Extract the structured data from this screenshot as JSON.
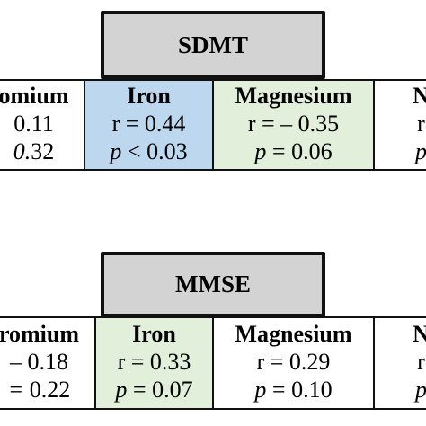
{
  "panels": [
    {
      "title": "SDMT",
      "cells": [
        {
          "header": "omium",
          "r": "0.11",
          "p": "0.32",
          "highlight": "none"
        },
        {
          "header": "Iron",
          "r": "r = 0.44",
          "p": "p < 0.03",
          "highlight": "blue"
        },
        {
          "header": "Magnesium",
          "r": "r = – 0.35",
          "p": "p = 0.06",
          "highlight": "green"
        },
        {
          "header": "N",
          "r": "r",
          "p": "p",
          "highlight": "none"
        }
      ]
    },
    {
      "title": "MMSE",
      "cells": [
        {
          "header": "romium",
          "r": "– 0.18",
          "p": "= 0.22",
          "highlight": "none"
        },
        {
          "header": "Iron",
          "r": "r = 0.33",
          "p": "p = 0.07",
          "highlight": "green"
        },
        {
          "header": "Magnesium",
          "r": "r = 0.29",
          "p": "p = 0.10",
          "highlight": "none"
        },
        {
          "header": "N",
          "r": "r",
          "p": "p",
          "highlight": "none"
        }
      ]
    }
  ]
}
